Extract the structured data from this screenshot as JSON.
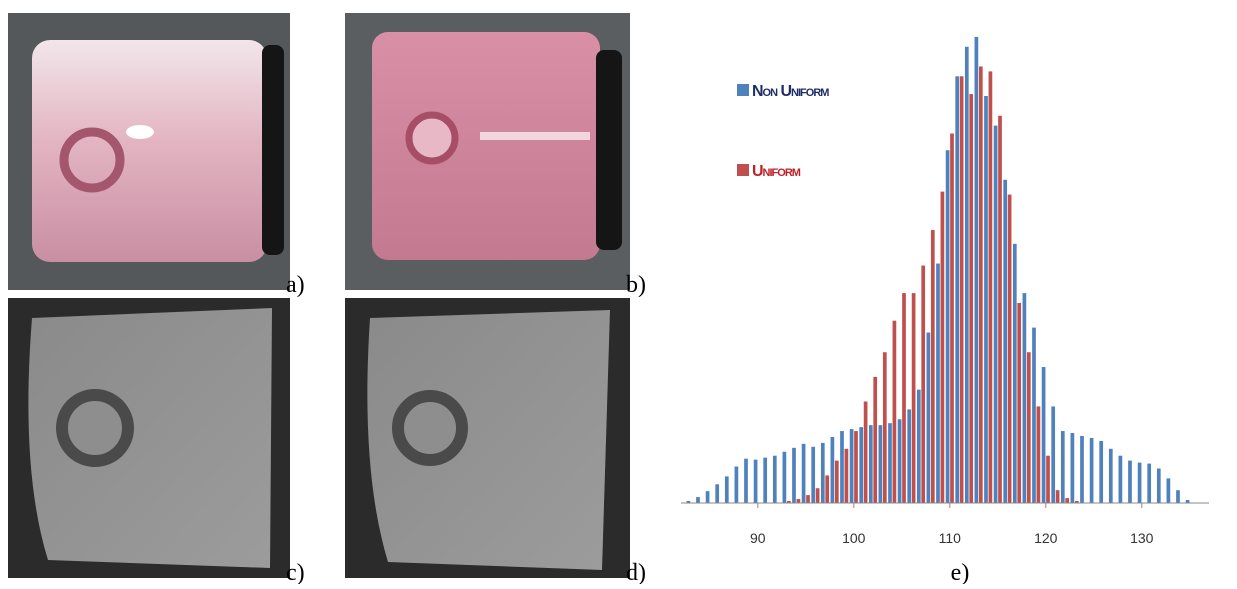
{
  "panels": [
    "a)",
    "b)",
    "c)",
    "d)",
    "e)"
  ],
  "chart_data": {
    "type": "bar",
    "x": [
      83,
      84,
      85,
      86,
      87,
      88,
      89,
      90,
      91,
      92,
      93,
      94,
      95,
      96,
      97,
      98,
      99,
      100,
      101,
      102,
      103,
      104,
      105,
      106,
      107,
      108,
      109,
      110,
      111,
      112,
      113,
      114,
      115,
      116,
      117,
      118,
      119,
      120,
      121,
      122,
      123,
      124,
      125,
      126,
      127,
      128,
      129,
      130,
      131,
      132,
      133,
      134,
      135
    ],
    "series": [
      {
        "name": "Non Uniform",
        "color": "#4f81bd",
        "text_color": "#1f2d6b",
        "values": [
          2,
          6,
          12,
          19,
          27,
          37,
          45,
          44,
          46,
          48,
          52,
          56,
          60,
          57,
          61,
          67,
          73,
          75,
          77,
          79,
          79,
          81,
          85,
          95,
          115,
          173,
          243,
          358,
          433,
          463,
          473,
          413,
          383,
          328,
          263,
          213,
          178,
          138,
          98,
          73,
          71,
          68,
          66,
          63,
          55,
          48,
          43,
          41,
          40,
          35,
          25,
          13,
          3
        ]
      },
      {
        "name": "Uniform",
        "color": "#c0504d",
        "text_color": "#c0202a",
        "values": [
          null,
          null,
          null,
          null,
          null,
          null,
          null,
          null,
          null,
          null,
          2,
          4,
          8,
          15,
          28,
          43,
          55,
          73,
          103,
          128,
          153,
          185,
          213,
          213,
          241,
          277,
          316,
          375,
          433,
          415,
          443,
          438,
          393,
          313,
          203,
          153,
          98,
          48,
          13,
          5,
          2,
          null,
          null,
          null,
          null,
          null,
          null,
          null,
          null,
          null,
          null,
          null,
          null
        ]
      }
    ],
    "xlim": [
      82,
      137
    ],
    "xticks": [
      90,
      100,
      110,
      120,
      130
    ],
    "ylim": [
      0,
      480
    ]
  }
}
